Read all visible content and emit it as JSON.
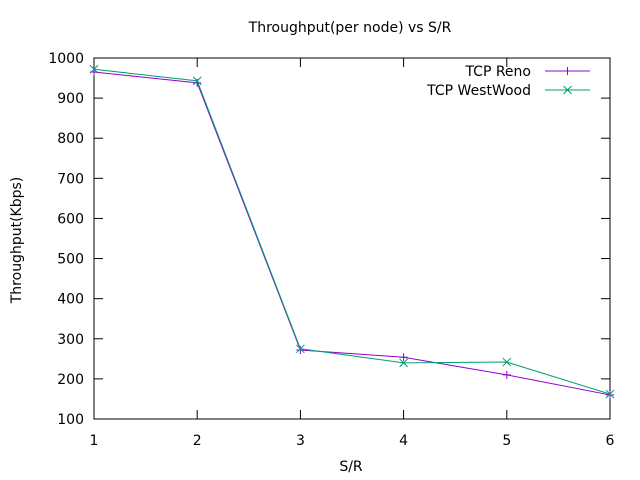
{
  "chart_data": {
    "type": "line",
    "title": "Throughput(per node) vs S/R",
    "xlabel": "S/R",
    "ylabel": "Throughput(Kbps)",
    "xlim": [
      1,
      6
    ],
    "ylim": [
      100,
      1000
    ],
    "xticks": [
      "1",
      "2",
      "3",
      "4",
      "5",
      "6"
    ],
    "yticks": [
      "100",
      "200",
      "300",
      "400",
      "500",
      "600",
      "700",
      "800",
      "900",
      "1000"
    ],
    "grid": false,
    "legend_position": "top-right",
    "x": [
      1,
      2,
      3,
      4,
      5,
      6
    ],
    "series": [
      {
        "name": "TCP Reno",
        "values": [
          965,
          938,
          272,
          254,
          210,
          160
        ],
        "color": "#9400d3",
        "marker": "plus"
      },
      {
        "name": "TCP WestWood",
        "values": [
          972,
          943,
          275,
          240,
          242,
          162
        ],
        "color": "#009e73",
        "marker": "cross"
      }
    ]
  }
}
